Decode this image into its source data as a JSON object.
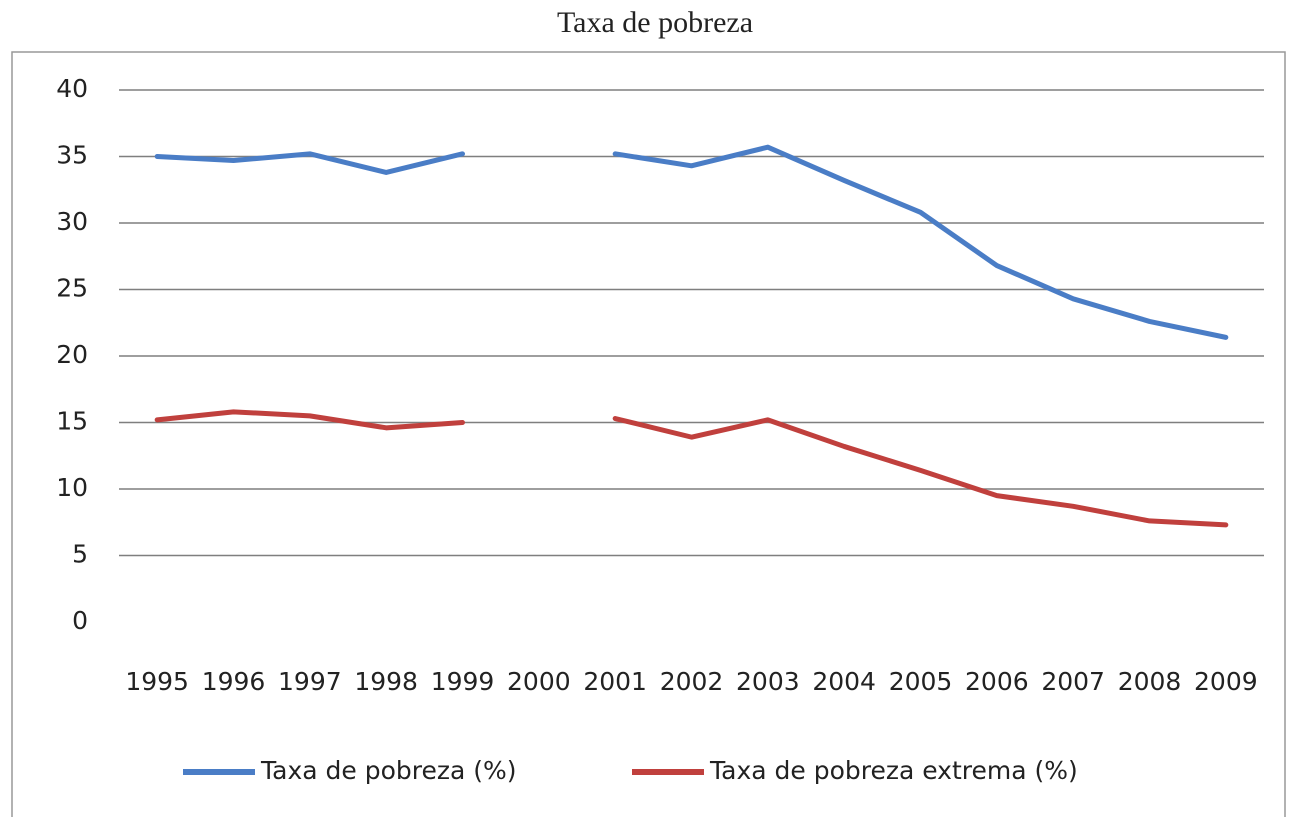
{
  "chart_data": {
    "type": "line",
    "title": "Taxa de pobreza",
    "categories": [
      "1995",
      "1996",
      "1997",
      "1998",
      "1999",
      "2000",
      "2001",
      "2002",
      "2003",
      "2004",
      "2005",
      "2006",
      "2007",
      "2008",
      "2009"
    ],
    "series": [
      {
        "name": "Taxa de pobreza (%)",
        "color": "#4a7dc6",
        "values": [
          35.0,
          34.7,
          35.2,
          33.8,
          35.2,
          null,
          35.2,
          34.3,
          35.7,
          33.2,
          30.8,
          26.8,
          24.3,
          22.6,
          21.4
        ]
      },
      {
        "name": "Taxa de pobreza extrema (%)",
        "color": "#c0403d",
        "values": [
          15.2,
          15.8,
          15.5,
          14.6,
          15.0,
          null,
          15.3,
          13.9,
          15.2,
          13.2,
          11.4,
          9.5,
          8.7,
          7.6,
          7.3
        ]
      }
    ],
    "ylim": [
      0,
      40
    ],
    "yticks": [
      0,
      5,
      10,
      15,
      20,
      25,
      30,
      35,
      40
    ],
    "grid": true,
    "legend": "bottom"
  }
}
